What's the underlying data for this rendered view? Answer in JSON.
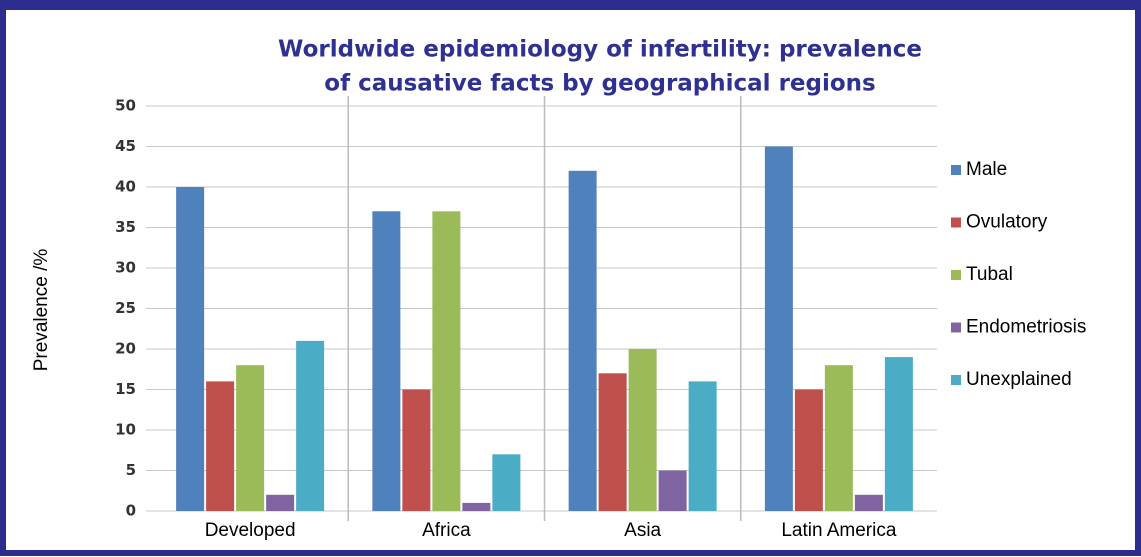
{
  "chart_data": {
    "type": "bar",
    "title": [
      "Worldwide epidemiology of infertility: prevalence",
      "of causative facts by geographical regions"
    ],
    "y_label": "Prevalence /%",
    "categories": [
      "Developed",
      "Africa",
      "Asia",
      "Latin America"
    ],
    "series": [
      {
        "name": "Male",
        "color": "#4f81bd",
        "values": [
          40,
          37,
          42,
          45
        ]
      },
      {
        "name": "Ovulatory",
        "color": "#c0504d",
        "values": [
          16,
          15,
          17,
          15
        ]
      },
      {
        "name": "Tubal",
        "color": "#9bbb59",
        "values": [
          18,
          37,
          20,
          18
        ]
      },
      {
        "name": "Endometriosis",
        "color": "#8064a2",
        "values": [
          2,
          1,
          5,
          2
        ]
      },
      {
        "name": "Unexplained",
        "color": "#4bacc6",
        "values": [
          21,
          7,
          16,
          19
        ]
      }
    ],
    "ylim": [
      0,
      50
    ],
    "yticks": [
      0,
      5,
      10,
      15,
      20,
      25,
      30,
      35,
      40,
      45,
      50
    ],
    "grid": true,
    "legend": "right"
  }
}
